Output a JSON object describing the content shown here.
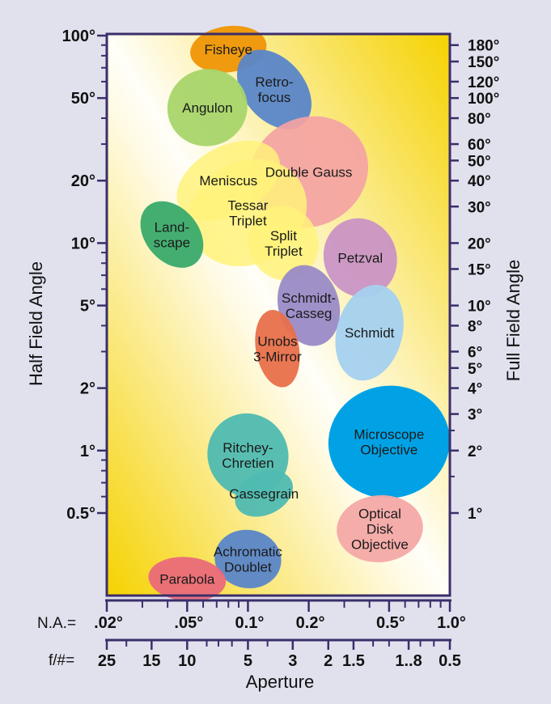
{
  "chart_data": {
    "type": "scatter",
    "xlabel": "Aperture",
    "ylabel": "Half Field Angle",
    "y2label": "Full Field Angle",
    "na_axis": {
      "prefix": "N.A.=",
      "ticks": [
        {
          "label": ".02°",
          "value": 0.02
        },
        {
          "label": ".05°",
          "value": 0.05
        },
        {
          "label": "0.1°",
          "value": 0.1
        },
        {
          "label": "0.2°",
          "value": 0.2
        },
        {
          "label": "0.5°",
          "value": 0.5
        },
        {
          "label": "1.0°",
          "value": 1.0
        }
      ]
    },
    "fnum_axis": {
      "prefix": "f/#=",
      "ticks": [
        {
          "label": "25",
          "value": 25
        },
        {
          "label": "15",
          "value": 15
        },
        {
          "label": "10",
          "value": 10
        },
        {
          "label": "5",
          "value": 5
        },
        {
          "label": "3",
          "value": 3
        },
        {
          "label": "2",
          "value": 2
        },
        {
          "label": "1.5",
          "value": 1.5
        },
        {
          "label": "1..8",
          "value": 0.8
        },
        {
          "label": "0.5",
          "value": 0.5
        }
      ]
    },
    "half_field_axis": {
      "scale": "log",
      "ticks": [
        {
          "label": "100°",
          "value": 100
        },
        {
          "label": "50°",
          "value": 50
        },
        {
          "label": "20°",
          "value": 20
        },
        {
          "label": "10°",
          "value": 10
        },
        {
          "label": "5°",
          "value": 5
        },
        {
          "label": "2°",
          "value": 2
        },
        {
          "label": "1°",
          "value": 1
        },
        {
          "label": "0.5°",
          "value": 0.5
        }
      ]
    },
    "full_field_axis": {
      "ticks": [
        {
          "label": "180°",
          "value": 180
        },
        {
          "label": "150°",
          "value": 150
        },
        {
          "label": "120°",
          "value": 120
        },
        {
          "label": "100°",
          "value": 100
        },
        {
          "label": "80°",
          "value": 80
        },
        {
          "label": "60°",
          "value": 60
        },
        {
          "label": "50°",
          "value": 50
        },
        {
          "label": "40°",
          "value": 40
        },
        {
          "label": "30°",
          "value": 30
        },
        {
          "label": "20°",
          "value": 20
        },
        {
          "label": "15°",
          "value": 15
        },
        {
          "label": "10°",
          "value": 10
        },
        {
          "label": "8°",
          "value": 8
        },
        {
          "label": "6°",
          "value": 6
        },
        {
          "label": "5°",
          "value": 5
        },
        {
          "label": "4°",
          "value": 4
        },
        {
          "label": "3°",
          "value": 3
        },
        {
          "label": "2°",
          "value": 2
        },
        {
          "label": "1°",
          "value": 1
        }
      ]
    },
    "regions": [
      {
        "lines": [
          "Fisheye"
        ],
        "na": 0.08,
        "half_field": 86,
        "na_span": [
          0.05,
          0.12
        ],
        "field_span": [
          66,
          110
        ],
        "angle": 8,
        "color": "#ef9a0f",
        "opacity": 1
      },
      {
        "lines": [
          "Retro-",
          "focus"
        ],
        "na": 0.135,
        "half_field": 55,
        "na_span": [
          0.1,
          0.2
        ],
        "field_span": [
          33,
          90
        ],
        "angle": 40,
        "color": "#5a86c9",
        "opacity": 0.95
      },
      {
        "lines": [
          "Angulon"
        ],
        "na": 0.063,
        "half_field": 45,
        "na_span": [
          0.04,
          0.1
        ],
        "field_span": [
          29,
          68
        ],
        "angle": 20,
        "color": "#a8d56a",
        "opacity": 0.95
      },
      {
        "lines": [
          "Double Gauss"
        ],
        "na": 0.2,
        "half_field": 22,
        "na_span": [
          0.1,
          0.4
        ],
        "field_span": [
          12,
          40
        ],
        "angle": 28,
        "color": "#f4a3a3",
        "opacity": 0.92
      },
      {
        "lines": [
          "Meniscus"
        ],
        "na": 0.08,
        "half_field": 20,
        "na_span": [
          0.045,
          0.16
        ],
        "field_span": [
          14,
          30
        ],
        "angle": 28,
        "color": "#fff27a",
        "opacity": 0.85
      },
      {
        "lines": [
          "Tessar",
          "Triplet"
        ],
        "na": 0.1,
        "half_field": 14,
        "na_span": [
          0.05,
          0.2
        ],
        "field_span": [
          8,
          25
        ],
        "angle": 28,
        "color": "#fff27a",
        "opacity": 0.85
      },
      {
        "lines": [
          "Split",
          "Triplet"
        ],
        "na": 0.15,
        "half_field": 10,
        "na_span": [
          0.1,
          0.22
        ],
        "field_span": [
          6.5,
          15
        ],
        "angle": 20,
        "color": "#fff27a",
        "opacity": 0.85
      },
      {
        "lines": [
          "Land-",
          "scape"
        ],
        "na": 0.042,
        "half_field": 11,
        "na_span": [
          0.03,
          0.055
        ],
        "field_span": [
          7,
          16
        ],
        "angle": 40,
        "color": "#3aaa6a",
        "opacity": 0.95
      },
      {
        "lines": [
          "Petzval"
        ],
        "na": 0.36,
        "half_field": 8.5,
        "na_span": [
          0.24,
          0.55
        ],
        "field_span": [
          6.2,
          15
        ],
        "angle": 20,
        "color": "#c88fc6",
        "opacity": 0.9
      },
      {
        "lines": [
          "Schmidt-",
          "Casseg"
        ],
        "na": 0.2,
        "half_field": 5,
        "na_span": [
          0.14,
          0.28
        ],
        "field_span": [
          3.3,
          8.2
        ],
        "angle": 15,
        "color": "#9a8ac7",
        "opacity": 0.95
      },
      {
        "lines": [
          "Schmidt"
        ],
        "na": 0.4,
        "half_field": 3.7,
        "na_span": [
          0.26,
          0.55
        ],
        "field_span": [
          2.1,
          6.2
        ],
        "angle": -15,
        "color": "#a4d1ef",
        "opacity": 0.95
      },
      {
        "lines": [
          "Unobs",
          "3-Mirror"
        ],
        "na": 0.14,
        "half_field": 3.1,
        "na_span": [
          0.11,
          0.18
        ],
        "field_span": [
          2.1,
          5.0
        ],
        "angle": 10,
        "color": "#e8704a",
        "opacity": 0.95
      },
      {
        "lines": [
          "Microscope",
          "Objective"
        ],
        "na": 0.5,
        "half_field": 1.1,
        "na_span": [
          0.25,
          1.0
        ],
        "field_span": [
          0.66,
          2.3
        ],
        "angle": 8,
        "color": "#00a2e5",
        "opacity": 1
      },
      {
        "lines": [
          "Ritchey-",
          "Chretien"
        ],
        "na": 0.1,
        "half_field": 0.95,
        "na_span": [
          0.06,
          0.15
        ],
        "field_span": [
          0.55,
          1.4
        ],
        "angle": 25,
        "color": "#4fbbb1",
        "opacity": 0.95
      },
      {
        "lines": [
          "Cassegrain"
        ],
        "na": 0.12,
        "half_field": 0.62,
        "na_span": [
          0.08,
          0.16
        ],
        "field_span": [
          0.5,
          0.8
        ],
        "angle": 25,
        "color": "#4fbbb1",
        "opacity": 0.95
      },
      {
        "lines": [
          "Optical",
          "Disk",
          "Objective"
        ],
        "na": 0.45,
        "half_field": 0.42,
        "na_span": [
          0.28,
          0.75
        ],
        "field_span": [
          0.3,
          0.63
        ],
        "angle": 5,
        "color": "#f4a9a6",
        "opacity": 0.95
      },
      {
        "lines": [
          "Achromatic",
          "Doublet"
        ],
        "na": 0.1,
        "half_field": 0.3,
        "na_span": [
          0.07,
          0.15
        ],
        "field_span": [
          0.22,
          0.42
        ],
        "angle": -10,
        "color": "#5a86c9",
        "opacity": 0.95
      },
      {
        "lines": [
          "Parabola"
        ],
        "na": 0.05,
        "half_field": 0.24,
        "na_span": [
          0.033,
          0.08
        ],
        "field_span": [
          0.19,
          0.31
        ],
        "angle": -5,
        "color": "#ea6a7a",
        "opacity": 0.95
      }
    ]
  }
}
